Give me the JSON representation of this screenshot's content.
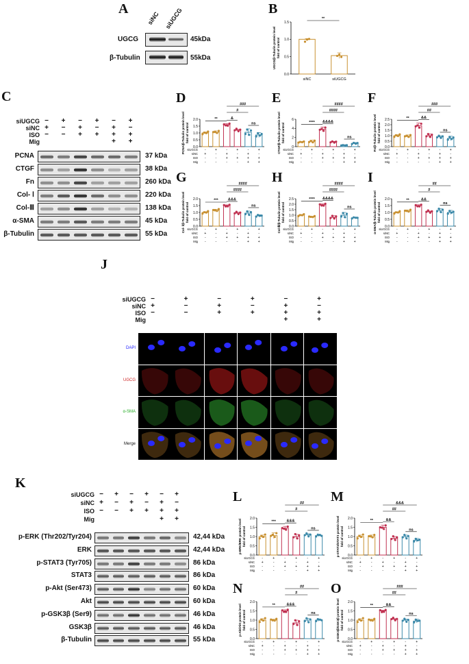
{
  "panels": {
    "A": "A",
    "B": "B",
    "C": "C",
    "D": "D",
    "E": "E",
    "F": "F",
    "G": "G",
    "H": "H",
    "I": "I",
    "J": "J",
    "K": "K",
    "L": "L",
    "M": "M",
    "N": "N",
    "O": "O"
  },
  "panelA": {
    "lanes": [
      "siNC",
      "siUGCG"
    ],
    "rows": [
      {
        "label": "UGCG",
        "kda": "45kDa"
      },
      {
        "label": "β-Tubulin",
        "kda": "55kDa"
      }
    ]
  },
  "conditions": {
    "labels": [
      "siUGCG",
      "siNC",
      "ISO",
      "Mig"
    ],
    "matrix": [
      [
        "−",
        "+",
        "−",
        "+",
        "−",
        "+"
      ],
      [
        "+",
        "−",
        "+",
        "−",
        "+",
        "−"
      ],
      [
        "−",
        "−",
        "+",
        "+",
        "+",
        "+"
      ],
      [
        "",
        "",
        "",
        "",
        "+",
        "+"
      ]
    ],
    "small_labels": [
      "siUGCG",
      "siNC",
      "ISO",
      "Mig"
    ],
    "small_matrix": [
      [
        "-",
        "+",
        "-",
        "+",
        "-",
        "+"
      ],
      [
        "+",
        "-",
        "+",
        "-",
        "+",
        "-"
      ],
      [
        "-",
        "-",
        "+",
        "+",
        "+",
        "+"
      ],
      [
        "-",
        "-",
        "-",
        "-",
        "+",
        "+"
      ]
    ]
  },
  "panelC": {
    "rows": [
      {
        "label": "PCNA",
        "kda": "37 kDa"
      },
      {
        "label": "CTGF",
        "kda": "38 kDa"
      },
      {
        "label": "Fn",
        "kda": "260 kDa"
      },
      {
        "label": "Col- Ⅰ",
        "kda": "220 kDa"
      },
      {
        "label": "Col-Ⅲ",
        "kda": "138 kDa"
      },
      {
        "label": "α-SMA",
        "kda": "45 kDa"
      },
      {
        "label": "β-Tubulin",
        "kda": "55 kDa"
      }
    ]
  },
  "panelJ": {
    "rows": [
      {
        "label": "DAPI",
        "color": "#1a1aff"
      },
      {
        "label": "UGCG",
        "color": "#cc2222"
      },
      {
        "label": "α-SMA",
        "color": "#22aa22"
      },
      {
        "label": "Merge",
        "color": "#111111"
      }
    ]
  },
  "panelK": {
    "rows": [
      {
        "label": "p-ERK (Thr202/Tyr204)",
        "kda": "42,44 kDa"
      },
      {
        "label": "ERK",
        "kda": "42,44 kDa"
      },
      {
        "label": "p-STAT3 (Tyr705)",
        "kda": "86 kDa"
      },
      {
        "label": "STAT3",
        "kda": "86 kDa"
      },
      {
        "label": "p-Akt (Ser473)",
        "kda": "60 kDa"
      },
      {
        "label": "Akt",
        "kda": "60 kDa"
      },
      {
        "label": "p-GSK3β (Ser9)",
        "kda": "46 kDa"
      },
      {
        "label": "GSK3β",
        "kda": "46 kDa"
      },
      {
        "label": "β-Tubulin",
        "kda": "55 kDa"
      }
    ]
  },
  "chart_data": [
    {
      "id": "B",
      "type": "bar",
      "ylabel": "UGCG/β-Tubulin protein level\nfold of control",
      "categories": [
        "siNC",
        "siUGCG"
      ],
      "values": [
        1.0,
        0.53
      ],
      "errors": [
        0.02,
        0.08
      ],
      "colors": [
        "#e0a040",
        "#e0a040"
      ],
      "ylim": [
        0,
        1.5
      ],
      "yticks": [
        0,
        0.5,
        1.0,
        1.5
      ],
      "sig": [
        {
          "text": "**",
          "from": 0,
          "to": 1
        }
      ]
    },
    {
      "id": "D",
      "type": "bar",
      "ylabel": "PCNA/β-Tubulin protein level\nfold of control",
      "values": [
        1.0,
        1.05,
        1.6,
        1.2,
        1.05,
        0.85
      ],
      "errors": [
        0.07,
        0.1,
        0.08,
        0.06,
        0.25,
        0.18
      ],
      "ylim": [
        0,
        2.0
      ],
      "yticks": [
        0,
        0.5,
        1.0,
        1.5,
        2.0
      ],
      "sig": [
        {
          "text": "**",
          "from": 0,
          "to": 2
        },
        {
          "text": "&",
          "from": 2,
          "to": 3
        },
        {
          "text": "ns",
          "from": 4,
          "to": 5
        },
        {
          "text": "#",
          "from": 2,
          "to": 4
        },
        {
          "text": "###",
          "from": 2,
          "to": 5
        }
      ]
    },
    {
      "id": "E",
      "type": "bar",
      "ylabel": "CTGF/β-Tubulin protein level\nfold of control",
      "values": [
        1.0,
        1.1,
        3.8,
        1.0,
        0.3,
        0.7
      ],
      "errors": [
        0.1,
        0.3,
        0.5,
        0.15,
        0.05,
        0.2
      ],
      "ylim": [
        0,
        6
      ],
      "yticks": [
        0,
        2,
        4,
        6
      ],
      "sig": [
        {
          "text": "****",
          "from": 0,
          "to": 2
        },
        {
          "text": "&&&&",
          "from": 2,
          "to": 3
        },
        {
          "text": "ns",
          "from": 4,
          "to": 5
        },
        {
          "text": "####",
          "from": 2,
          "to": 4
        },
        {
          "text": "####",
          "from": 2,
          "to": 5
        }
      ]
    },
    {
      "id": "F",
      "type": "bar",
      "ylabel": "Fn/β-Tubulin protein level\nfold of control",
      "values": [
        1.0,
        0.95,
        1.9,
        1.0,
        0.9,
        0.75
      ],
      "errors": [
        0.1,
        0.12,
        0.25,
        0.15,
        0.1,
        0.2
      ],
      "ylim": [
        0,
        2.5
      ],
      "yticks": [
        0,
        0.5,
        1.0,
        1.5,
        2.0,
        2.5
      ],
      "sig": [
        {
          "text": "**",
          "from": 0,
          "to": 2
        },
        {
          "text": "&&",
          "from": 2,
          "to": 3
        },
        {
          "text": "ns",
          "from": 4,
          "to": 5
        },
        {
          "text": "##",
          "from": 2,
          "to": 4
        },
        {
          "text": "###",
          "from": 2,
          "to": 5
        }
      ]
    },
    {
      "id": "G",
      "type": "bar",
      "ylabel": "Col- Ⅰ/β-Tubulin protein level\nfold of control",
      "values": [
        1.0,
        1.15,
        1.5,
        0.95,
        0.95,
        0.75
      ],
      "errors": [
        0.06,
        0.08,
        0.05,
        0.06,
        0.15,
        0.08
      ],
      "ylim": [
        0,
        2.0
      ],
      "yticks": [
        0,
        0.5,
        1.0,
        1.5,
        2.0
      ],
      "sig": [
        {
          "text": "***",
          "from": 0,
          "to": 2
        },
        {
          "text": "&&&",
          "from": 2,
          "to": 3
        },
        {
          "text": "ns",
          "from": 4,
          "to": 5
        },
        {
          "text": "####",
          "from": 2,
          "to": 4
        },
        {
          "text": "####",
          "from": 2,
          "to": 5
        }
      ]
    },
    {
      "id": "H",
      "type": "bar",
      "ylabel": "Col-Ⅲ/β-Tubulin protein level\nfold of control",
      "values": [
        1.0,
        0.85,
        1.95,
        0.8,
        1.0,
        0.75
      ],
      "errors": [
        0.05,
        0.05,
        0.08,
        0.15,
        0.25,
        0.06
      ],
      "ylim": [
        0,
        2.5
      ],
      "yticks": [
        0,
        0.5,
        1.0,
        1.5,
        2.0,
        2.5
      ],
      "sig": [
        {
          "text": "****",
          "from": 0,
          "to": 2
        },
        {
          "text": "&&&&",
          "from": 2,
          "to": 3
        },
        {
          "text": "ns",
          "from": 4,
          "to": 5
        },
        {
          "text": "####",
          "from": 2,
          "to": 4
        },
        {
          "text": "####",
          "from": 2,
          "to": 5
        }
      ]
    },
    {
      "id": "I",
      "type": "bar",
      "ylabel": "α-SMA/β-Tubulin protein level\nfold of control",
      "values": [
        1.0,
        1.1,
        1.5,
        1.05,
        1.15,
        1.0
      ],
      "errors": [
        0.05,
        0.08,
        0.06,
        0.05,
        0.12,
        0.15
      ],
      "ylim": [
        0,
        2.0
      ],
      "yticks": [
        0,
        0.5,
        1.0,
        1.5,
        2.0
      ],
      "sig": [
        {
          "text": "**",
          "from": 0,
          "to": 2
        },
        {
          "text": "&&",
          "from": 2,
          "to": 3
        },
        {
          "text": "ns",
          "from": 4,
          "to": 5
        },
        {
          "text": "#",
          "from": 2,
          "to": 4
        },
        {
          "text": "##",
          "from": 2,
          "to": 5
        }
      ]
    },
    {
      "id": "L",
      "type": "bar",
      "ylabel": "p-ERK/ERK protein level\nfold of control",
      "values": [
        1.0,
        1.05,
        1.45,
        1.0,
        1.1,
        1.05
      ],
      "errors": [
        0.08,
        0.15,
        0.1,
        0.12,
        0.05,
        0.05
      ],
      "ylim": [
        0,
        2.0
      ],
      "yticks": [
        0,
        0.5,
        1.0,
        1.5,
        2.0
      ],
      "sig": [
        {
          "text": "***",
          "from": 0,
          "to": 2
        },
        {
          "text": "&&&",
          "from": 2,
          "to": 3
        },
        {
          "text": "ns",
          "from": 4,
          "to": 5
        },
        {
          "text": "#",
          "from": 2,
          "to": 4
        },
        {
          "text": "##",
          "from": 2,
          "to": 5
        }
      ]
    },
    {
      "id": "M",
      "type": "bar",
      "ylabel": "p-STAT3/STAT3 protein level\nfold of control",
      "values": [
        1.0,
        1.0,
        1.5,
        0.9,
        1.0,
        0.8
      ],
      "errors": [
        0.08,
        0.08,
        0.12,
        0.1,
        0.08,
        0.1
      ],
      "ylim": [
        0,
        2.0
      ],
      "yticks": [
        0,
        0.5,
        1.0,
        1.5,
        2.0
      ],
      "sig": [
        {
          "text": "**",
          "from": 0,
          "to": 2
        },
        {
          "text": "&&",
          "from": 2,
          "to": 3
        },
        {
          "text": "ns",
          "from": 4,
          "to": 5
        },
        {
          "text": "##",
          "from": 2,
          "to": 4
        },
        {
          "text": "&&&",
          "from": 2,
          "to": 5
        }
      ]
    },
    {
      "id": "N",
      "type": "bar",
      "ylabel": "p-Akt/Akt protein level\nfold of control",
      "values": [
        1.0,
        1.0,
        1.5,
        0.85,
        1.0,
        1.0
      ],
      "errors": [
        0.08,
        0.05,
        0.06,
        0.15,
        0.1,
        0.06
      ],
      "ylim": [
        0,
        2.0
      ],
      "yticks": [
        0,
        0.5,
        1.0,
        1.5,
        2.0
      ],
      "sig": [
        {
          "text": "**",
          "from": 0,
          "to": 2
        },
        {
          "text": "&&&",
          "from": 2,
          "to": 3
        },
        {
          "text": "ns",
          "from": 4,
          "to": 5
        },
        {
          "text": "#",
          "from": 2,
          "to": 4
        },
        {
          "text": "##",
          "from": 2,
          "to": 5
        }
      ]
    },
    {
      "id": "O",
      "type": "bar",
      "ylabel": "p-GSK3β/GSK3β protein level\nfold of control",
      "values": [
        1.0,
        1.0,
        1.5,
        1.05,
        1.0,
        0.95
      ],
      "errors": [
        0.08,
        0.05,
        0.04,
        0.03,
        0.06,
        0.1
      ],
      "ylim": [
        0,
        2.0
      ],
      "yticks": [
        0,
        0.5,
        1.0,
        1.5,
        2.0
      ],
      "sig": [
        {
          "text": "**",
          "from": 0,
          "to": 2
        },
        {
          "text": "&&",
          "from": 2,
          "to": 3
        },
        {
          "text": "ns",
          "from": 4,
          "to": 5
        },
        {
          "text": "##",
          "from": 2,
          "to": 4
        },
        {
          "text": "###",
          "from": 2,
          "to": 5
        }
      ]
    }
  ],
  "bar_colors": [
    "#e8c07a",
    "#e8c07a",
    "#d9667a",
    "#d9667a",
    "#6fb0c8",
    "#6fb0c8"
  ],
  "bar_strokes": [
    "#c89030",
    "#c89030",
    "#c03050",
    "#c03050",
    "#3a88a8",
    "#3a88a8"
  ]
}
